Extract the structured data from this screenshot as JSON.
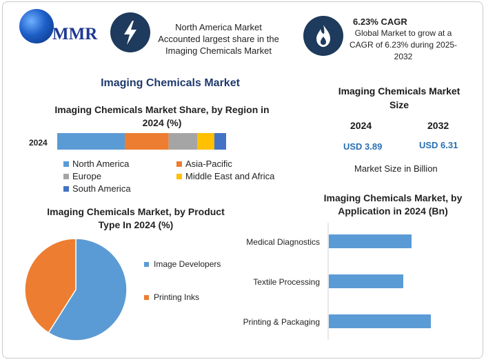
{
  "header": {
    "logo_text": "MMR",
    "na_text": [
      "North America Market",
      "Accounted largest share in the",
      "Imaging Chemicals Market"
    ],
    "cagr_title": "6.23% CAGR",
    "cagr_text": [
      "Global Market to grow at a",
      "CAGR of 6.23% during 2025-",
      "2032"
    ]
  },
  "main_title": "Imaging Chemicals Market",
  "market_size": {
    "title": [
      "Imaging Chemicals Market",
      "Size"
    ],
    "years": [
      "2024",
      "2032"
    ],
    "values": [
      "USD 3.89",
      "USD 6.31"
    ],
    "unit": "Market Size in Billion"
  },
  "colors": {
    "north_america": "#5b9bd5",
    "asia_pacific": "#ed7d31",
    "europe": "#a5a5a5",
    "middle_east_africa": "#ffc000",
    "south_america": "#4472c4",
    "navy": "#1e3a5c",
    "title_blue": "#1f3a6e",
    "value_blue": "#2a6fb3"
  },
  "chart_data": [
    {
      "type": "bar",
      "orientation": "horizontal-stacked",
      "title": [
        "Imaging Chemicals Market Share, by Region in",
        "2024 (%)"
      ],
      "categories": [
        "2024"
      ],
      "series": [
        {
          "name": "North America",
          "values": [
            40
          ]
        },
        {
          "name": "Asia-Pacific",
          "values": [
            26
          ]
        },
        {
          "name": "Europe",
          "values": [
            17
          ]
        },
        {
          "name": "Middle East and Africa",
          "values": [
            10
          ]
        },
        {
          "name": "South America",
          "values": [
            7
          ]
        }
      ],
      "legend_placement": "bottom"
    },
    {
      "type": "pie",
      "title": [
        "Imaging Chemicals Market, by Product",
        "Type In 2024 (%)"
      ],
      "labels": [
        "Image Developers",
        "Printing Inks"
      ],
      "values": [
        59,
        41
      ],
      "legend_placement": "right"
    },
    {
      "type": "bar",
      "orientation": "horizontal",
      "title": [
        "Imaging Chemicals Market, by",
        "Application in 2024 (Bn)"
      ],
      "categories": [
        "Medical Diagnostics",
        "Textile Processing",
        "Printing & Packaging"
      ],
      "values": [
        1.2,
        1.08,
        1.48
      ],
      "xlim": [
        0,
        2.0
      ]
    }
  ]
}
